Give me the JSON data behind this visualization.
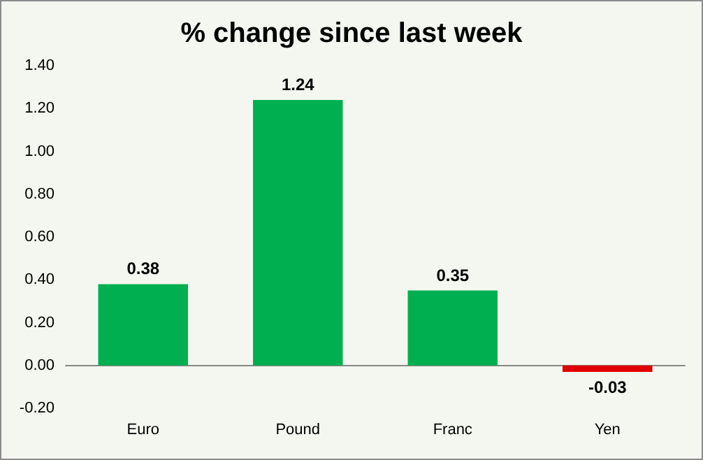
{
  "chart_data": {
    "type": "bar",
    "title": "% change since last week",
    "categories": [
      "Euro",
      "Pound",
      "Franc",
      "Yen"
    ],
    "values": [
      0.38,
      1.24,
      0.35,
      -0.03
    ],
    "colors": [
      "#00b050",
      "#00b050",
      "#00b050",
      "#e00000"
    ],
    "ylim": [
      -0.2,
      1.4
    ],
    "yticks": [
      {
        "value": -0.2,
        "label": "-0.20"
      },
      {
        "value": 0,
        "label": "0.00"
      },
      {
        "value": 0.2,
        "label": "0.20"
      },
      {
        "value": 0.4,
        "label": "0.40"
      },
      {
        "value": 0.6,
        "label": "0.60"
      },
      {
        "value": 0.8,
        "label": "0.80"
      },
      {
        "value": 1.0,
        "label": "1.00"
      },
      {
        "value": 1.2,
        "label": "1.20"
      },
      {
        "value": 1.4,
        "label": "1.40"
      }
    ],
    "data_labels": true
  }
}
